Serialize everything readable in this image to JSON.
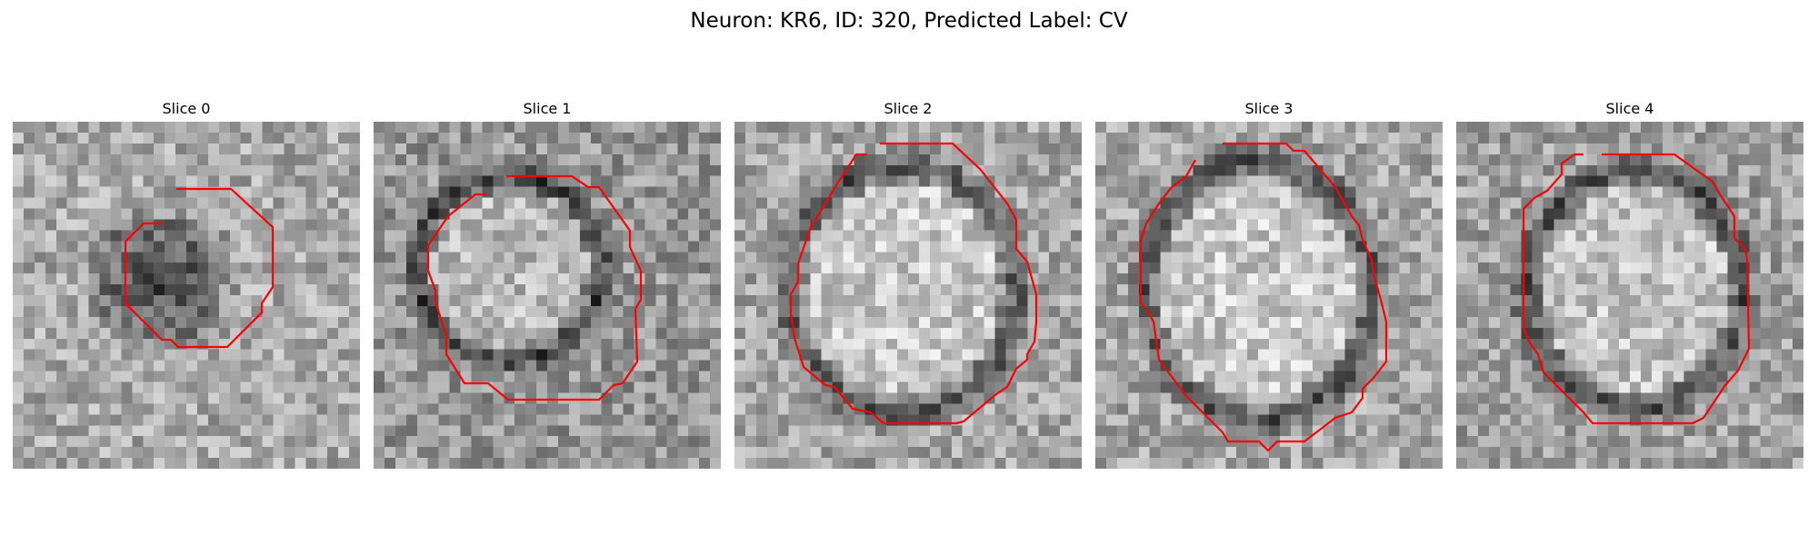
{
  "figure": {
    "title": "Neuron: KR6, ID: 320, Predicted Label: CV",
    "contour_color": "#ff0000"
  },
  "panels": [
    {
      "title": "Slice 0"
    },
    {
      "title": "Slice 1"
    },
    {
      "title": "Slice 2"
    },
    {
      "title": "Slice 3"
    },
    {
      "title": "Slice 4"
    }
  ]
}
